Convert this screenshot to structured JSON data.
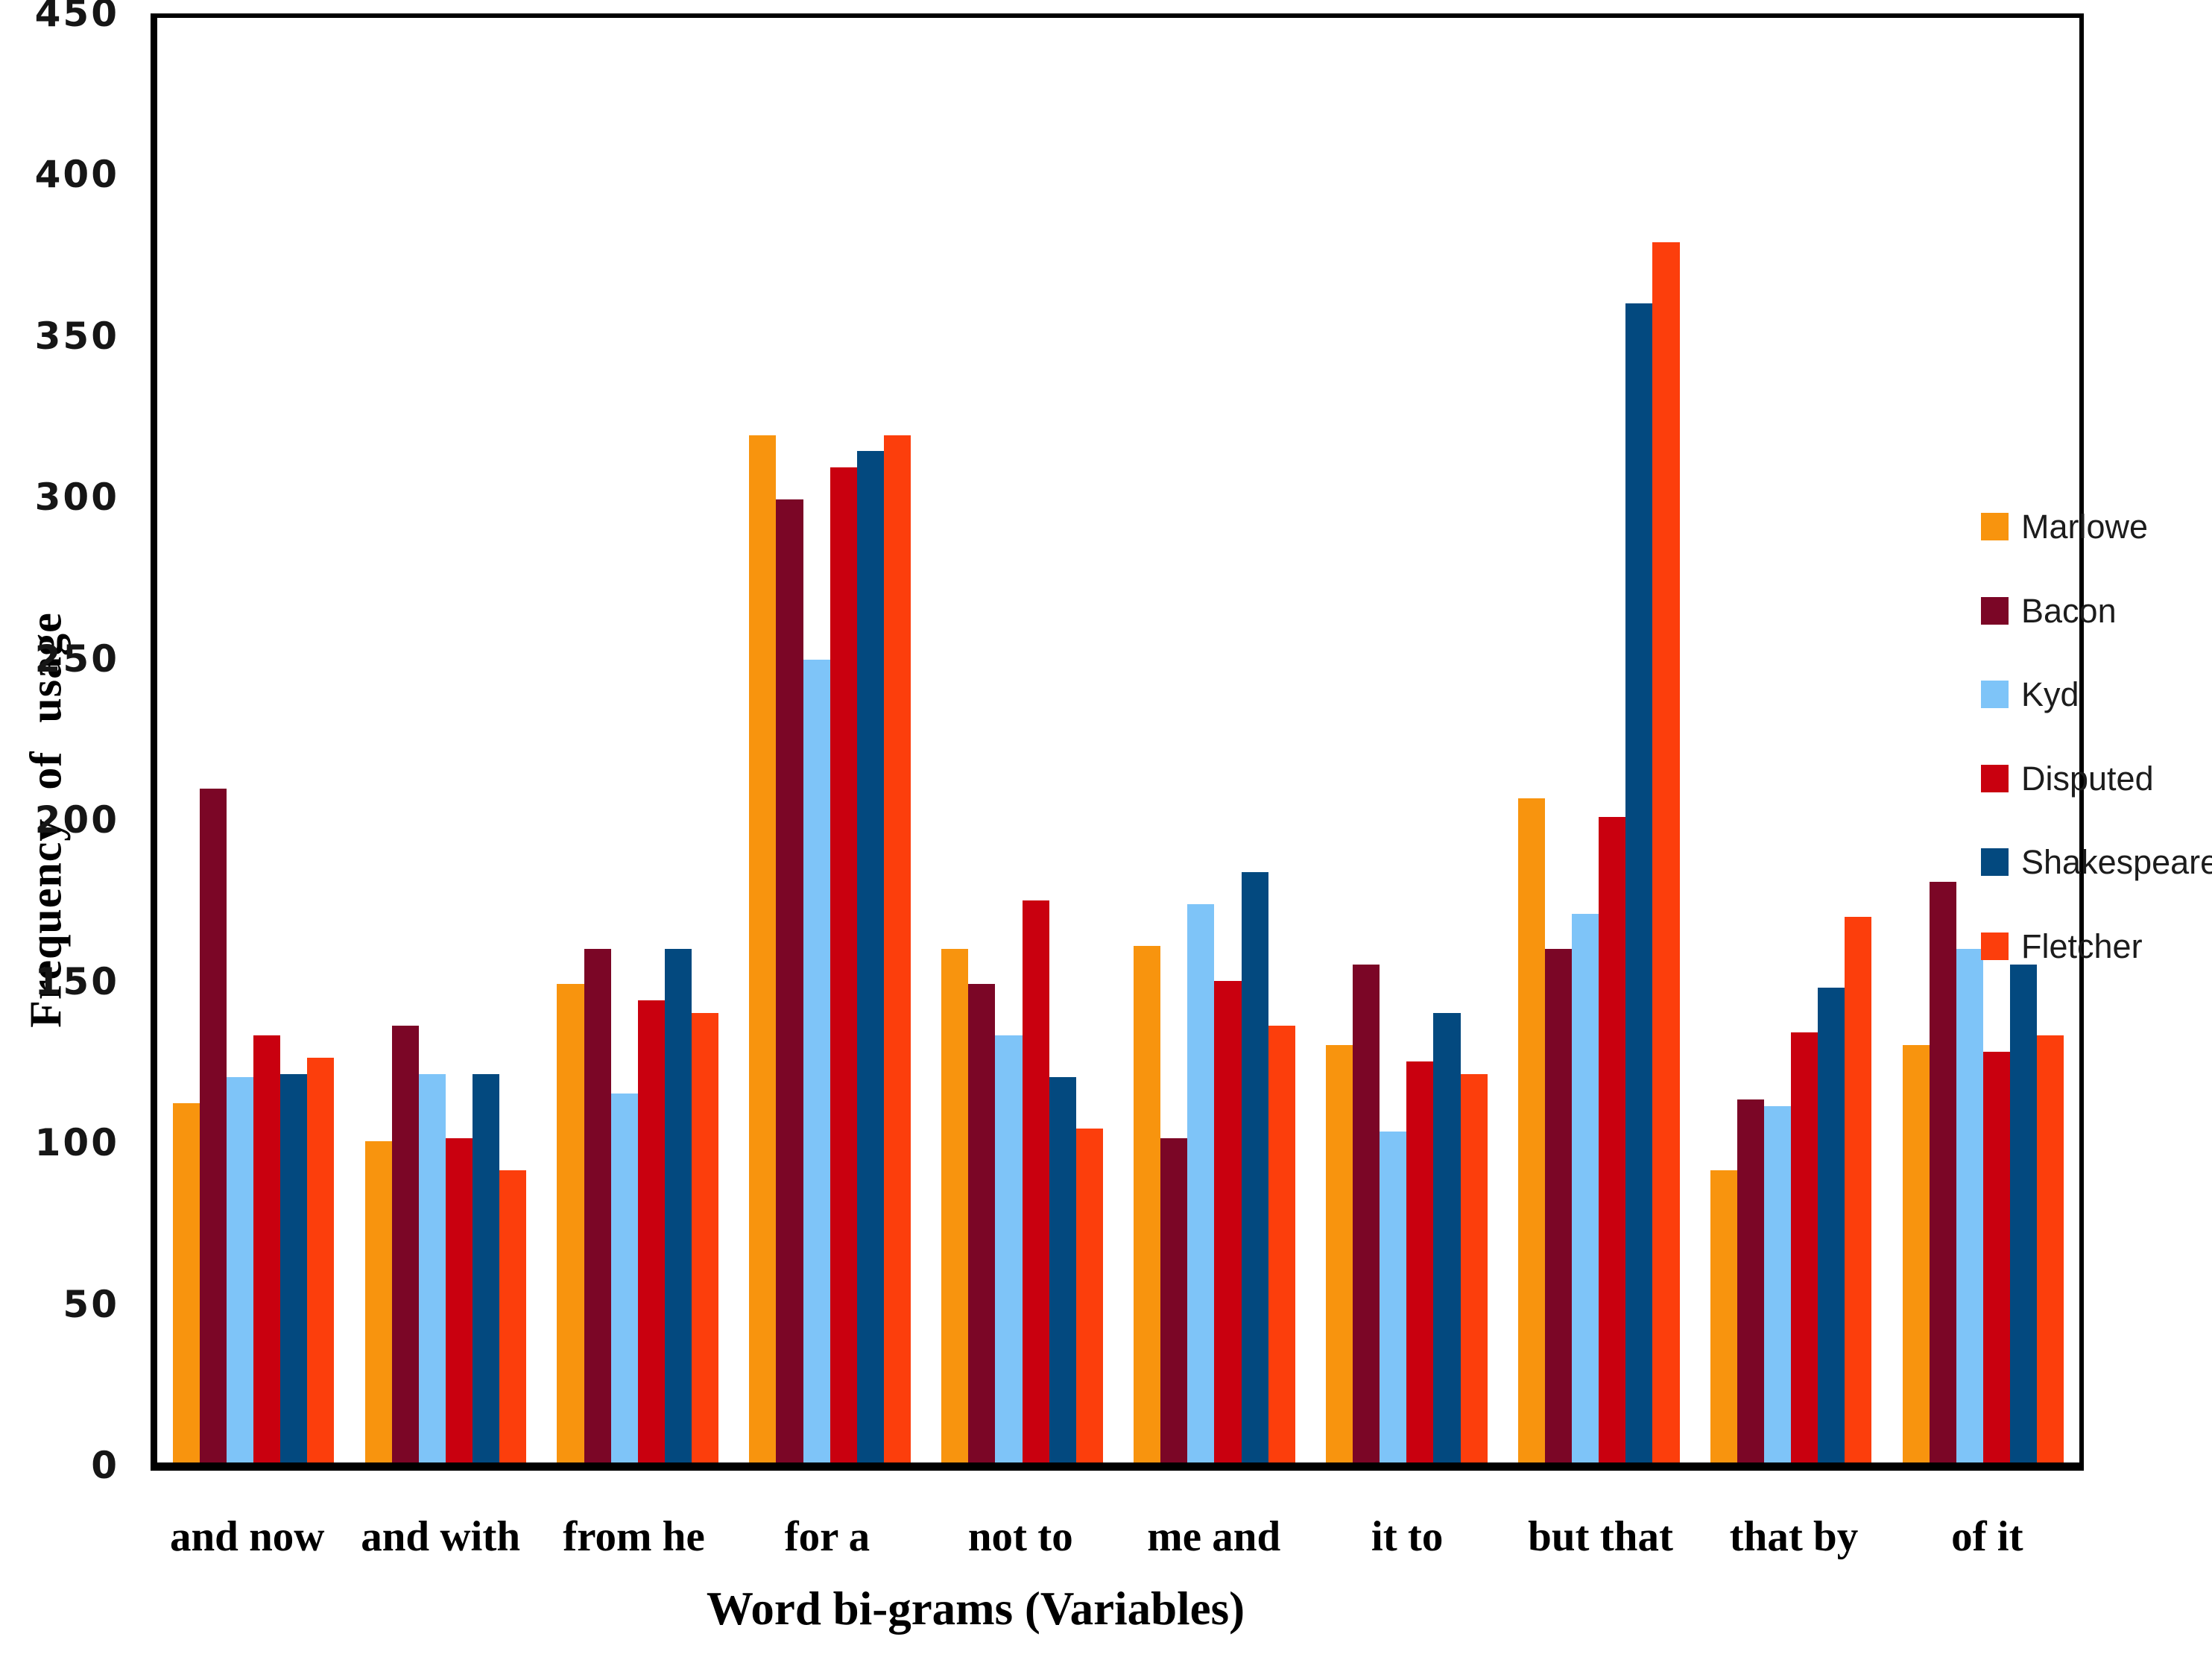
{
  "chart_data": {
    "type": "bar",
    "title": "",
    "xlabel": "Word bi-grams (Variables)",
    "ylabel": "Frequency of usage",
    "ylim": [
      0,
      450
    ],
    "ytick_step": 50,
    "yticks": [
      450,
      400,
      350,
      300,
      250,
      200,
      150,
      100,
      50,
      0
    ],
    "grid": false,
    "legend_position": "right",
    "categories": [
      "and now",
      "and with",
      "from he",
      "for a",
      "not to",
      "me and",
      "it to",
      "but that",
      "that by",
      "of it"
    ],
    "series": [
      {
        "name": "Marlowe",
        "color": "#F8940E",
        "values": [
          112,
          100,
          149,
          320,
          160,
          161,
          130,
          207,
          91,
          130
        ]
      },
      {
        "name": "Bacon",
        "color": "#7B0626",
        "values": [
          210,
          136,
          160,
          300,
          149,
          101,
          155,
          160,
          113,
          181
        ]
      },
      {
        "name": "Kyd",
        "color": "#7EC4F8",
        "values": [
          120,
          121,
          115,
          250,
          133,
          174,
          103,
          171,
          111,
          160
        ]
      },
      {
        "name": "Disputed",
        "color": "#C9000F",
        "values": [
          133,
          101,
          144,
          310,
          175,
          150,
          125,
          201,
          134,
          128
        ]
      },
      {
        "name": "Shakespeare",
        "color": "#03497F",
        "values": [
          121,
          121,
          160,
          315,
          120,
          184,
          140,
          361,
          148,
          155
        ]
      },
      {
        "name": "Fletcher",
        "color": "#FC3E0C",
        "values": [
          126,
          91,
          140,
          320,
          104,
          136,
          121,
          380,
          170,
          133
        ]
      }
    ]
  }
}
